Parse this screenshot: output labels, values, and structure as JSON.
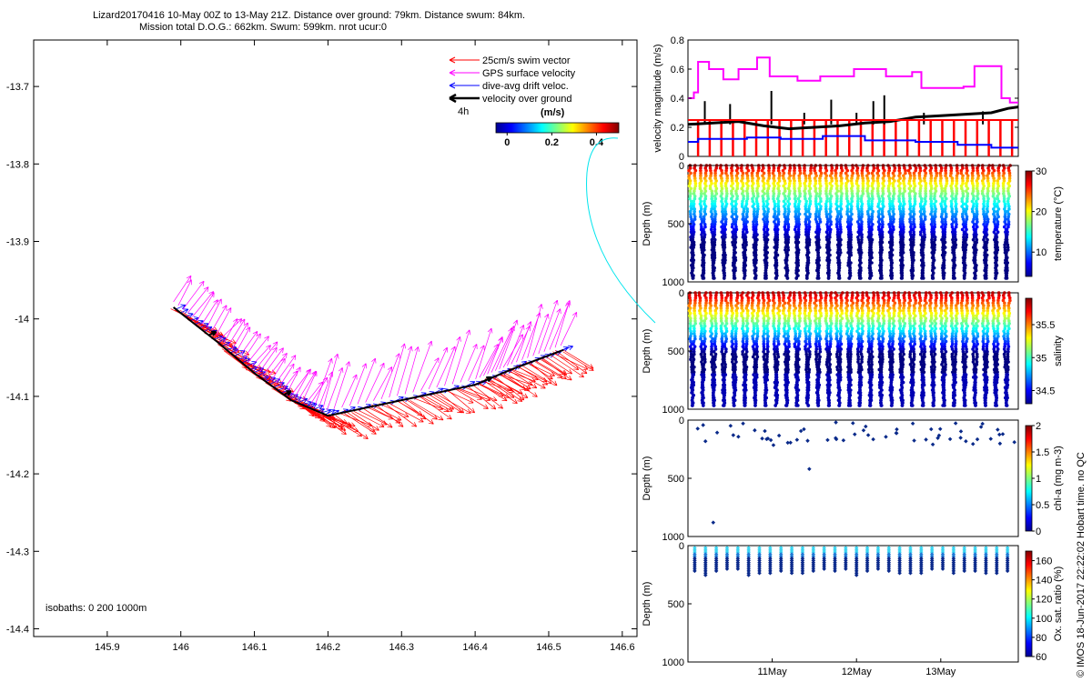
{
  "header": {
    "line1": "Lizard20170416 10-May 00Z to 13-May 21Z. Distance over ground: 79km. Distance swum: 84km.",
    "line2": "Mission total D.O.G.: 662km. Swum: 599km. nrot ucur:0"
  },
  "credit": "© IMOS 18-Jun-2017 22:22:02 Hobart time. no QC",
  "colors": {
    "swim": "#ff0000",
    "gps": "#ff00ff",
    "drift": "#0000ff",
    "ground": "#000000",
    "link": "#00e5ee"
  },
  "chart_data": [
    {
      "id": "map",
      "type": "line",
      "xlim": [
        145.8,
        146.62
      ],
      "ylim": [
        -14.41,
        -13.64
      ],
      "xticks": [
        145.9,
        146.0,
        146.1,
        146.2,
        146.3,
        146.4,
        146.5,
        146.6
      ],
      "xtick_labels": [
        "145.9",
        "146",
        "146.1",
        "146.2",
        "146.3",
        "146.4",
        "146.5",
        "146.6"
      ],
      "yticks": [
        -13.7,
        -13.8,
        -13.9,
        -14.0,
        -14.1,
        -14.2,
        -14.3,
        -14.4
      ],
      "ytick_labels": [
        "-13.7",
        "-13.8",
        "-13.9",
        "-14",
        "-14.1",
        "-14.2",
        "-14.3",
        "-14.4"
      ],
      "track": {
        "x": [
          145.99,
          146.05,
          146.1,
          146.15,
          146.2,
          146.3,
          146.4,
          146.45,
          146.52
        ],
        "y": [
          -13.985,
          -14.03,
          -14.07,
          -14.105,
          -14.125,
          -14.105,
          -14.085,
          -14.065,
          -14.04
        ]
      },
      "legend": [
        "25cm/s swim vector",
        "GPS surface velocity",
        "dive-avg drift veloc.",
        "velocity over ground"
      ],
      "legend_note": "4h",
      "colorbar": {
        "label": "(m/s)",
        "ticks": [
          0,
          0.2,
          0.4
        ],
        "tick_labels": [
          "0",
          "0.2",
          "0.4"
        ],
        "range": [
          -0.05,
          0.5
        ]
      },
      "isobaths_label": "isobaths: 0   200  1000m"
    },
    {
      "id": "velocity",
      "type": "line",
      "ylabel": "velocity magnitude (m/s)",
      "ylim": [
        0,
        0.8
      ],
      "yticks": [
        0,
        0.2,
        0.4,
        0.6,
        0.8
      ],
      "ytick_labels": [
        "0",
        "0.2",
        "0.4",
        "0.6",
        "0.8"
      ],
      "xlim": [
        0,
        3.92
      ],
      "series": [
        {
          "color": "magenta",
          "x": [
            0,
            0.07,
            0.07,
            0.12,
            0.12,
            0.25,
            0.25,
            0.42,
            0.42,
            0.6,
            0.6,
            0.82,
            0.82,
            0.97,
            0.97,
            1.3,
            1.3,
            1.57,
            1.57,
            1.97,
            1.97,
            2.35,
            2.35,
            2.66,
            2.66,
            2.77,
            2.77,
            3.27,
            3.27,
            3.4,
            3.4,
            3.72,
            3.72,
            3.82,
            3.82,
            3.92
          ],
          "y": [
            0.4,
            0.4,
            0.44,
            0.44,
            0.65,
            0.65,
            0.6,
            0.6,
            0.53,
            0.53,
            0.6,
            0.6,
            0.68,
            0.68,
            0.55,
            0.55,
            0.52,
            0.52,
            0.55,
            0.55,
            0.6,
            0.6,
            0.55,
            0.55,
            0.58,
            0.58,
            0.47,
            0.47,
            0.48,
            0.48,
            0.62,
            0.62,
            0.4,
            0.4,
            0.37,
            0.37
          ]
        },
        {
          "color": "black",
          "x": [
            0,
            0.3,
            0.6,
            0.9,
            1.2,
            1.5,
            1.8,
            2.1,
            2.4,
            2.7,
            3.0,
            3.3,
            3.6,
            3.8,
            3.92
          ],
          "y": [
            0.22,
            0.23,
            0.24,
            0.21,
            0.19,
            0.2,
            0.21,
            0.23,
            0.24,
            0.27,
            0.28,
            0.29,
            0.3,
            0.33,
            0.34
          ]
        },
        {
          "color": "red",
          "x": [
            0,
            3.92
          ],
          "y": [
            0.25,
            0.25
          ]
        },
        {
          "color": "blue",
          "x": [
            0,
            0.12,
            0.12,
            0.7,
            0.7,
            1.1,
            1.1,
            1.6,
            1.6,
            2.1,
            2.1,
            2.7,
            2.7,
            3.2,
            3.2,
            3.6,
            3.6,
            3.92
          ],
          "y": [
            0.1,
            0.1,
            0.12,
            0.12,
            0.13,
            0.13,
            0.12,
            0.12,
            0.14,
            0.14,
            0.11,
            0.11,
            0.1,
            0.1,
            0.08,
            0.08,
            0.06,
            0.06
          ]
        }
      ]
    },
    {
      "id": "temperature",
      "type": "scatter",
      "ylabel": "Depth (m)",
      "ylim": [
        0,
        1000
      ],
      "yticks": [
        0,
        500,
        1000
      ],
      "ytick_labels": [
        "0",
        "500",
        "1000"
      ],
      "cbar_label": "temperature (°C)",
      "cbar_range": [
        4,
        30
      ],
      "cbar_ticks": [
        10,
        20,
        30
      ],
      "cbar_tick_labels": [
        "10",
        "20",
        "30"
      ],
      "dive_count": 31,
      "max_depth": 985
    },
    {
      "id": "salinity",
      "type": "scatter",
      "ylabel": "Depth (m)",
      "ylim": [
        0,
        1000
      ],
      "yticks": [
        0,
        500,
        1000
      ],
      "ytick_labels": [
        "0",
        "500",
        "1000"
      ],
      "cbar_label": "salinity",
      "cbar_range": [
        34.3,
        35.9
      ],
      "cbar_ticks": [
        34.5,
        35,
        35.5
      ],
      "cbar_tick_labels": [
        "34.5",
        "35",
        "35.5"
      ],
      "dive_count": 31,
      "max_depth": 985
    },
    {
      "id": "chla",
      "type": "scatter",
      "ylabel": "Depth (m)",
      "ylim": [
        0,
        1000
      ],
      "yticks": [
        0,
        500,
        1000
      ],
      "ytick_labels": [
        "0",
        "500",
        "1000"
      ],
      "cbar_label": "chl-a (mg m-3)",
      "cbar_range": [
        0,
        2
      ],
      "cbar_ticks": [
        0,
        0.5,
        1,
        1.5,
        2
      ],
      "cbar_tick_labels": [
        "0",
        "0.5",
        "1",
        "1.5",
        "2"
      ],
      "outliers": [
        {
          "x": 1.44,
          "depth": 420
        },
        {
          "x": 0.3,
          "depth": 880
        }
      ]
    },
    {
      "id": "oxygen",
      "type": "scatter",
      "ylabel": "Depth (m)",
      "ylim": [
        0,
        1000
      ],
      "yticks": [
        0,
        500,
        1000
      ],
      "ytick_labels": [
        "0",
        "500",
        "1000"
      ],
      "cbar_label": "Ox. sat. ratio (%)",
      "cbar_range": [
        60,
        170
      ],
      "cbar_ticks": [
        60,
        80,
        100,
        120,
        140,
        160
      ],
      "cbar_tick_labels": [
        "60",
        "80",
        "100",
        "120",
        "140",
        "160"
      ],
      "xlim": [
        0,
        3.92
      ],
      "xticks": [
        1,
        2,
        3
      ],
      "xtick_labels": [
        "11May",
        "12May",
        "13May"
      ]
    }
  ]
}
